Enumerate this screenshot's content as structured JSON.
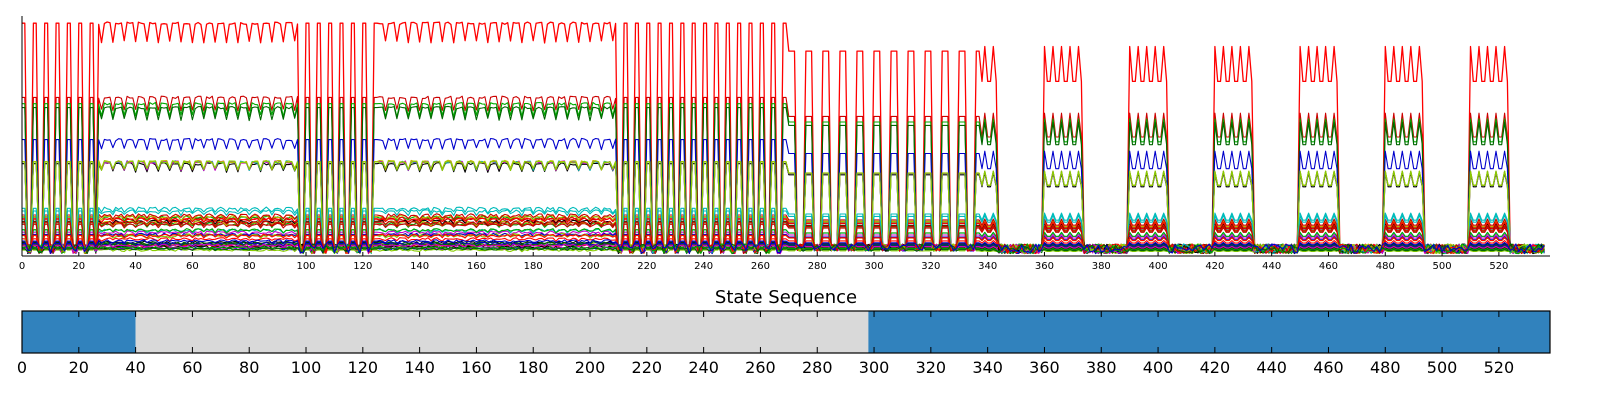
{
  "chart_data": [
    {
      "type": "line",
      "title": "",
      "xlabel": "",
      "ylabel": "",
      "xlim": [
        0,
        538
      ],
      "xticks": [
        0,
        20,
        40,
        60,
        80,
        100,
        120,
        140,
        160,
        180,
        200,
        220,
        240,
        260,
        280,
        300,
        320,
        340,
        360,
        380,
        400,
        420,
        440,
        460,
        480,
        500,
        520
      ],
      "y_ticks_shown": false,
      "grid": false,
      "series_count": 45,
      "segments": [
        {
          "x_range": [
            0,
            27
          ],
          "pattern": "dense spikes"
        },
        {
          "x_range": [
            27,
            98
          ],
          "pattern": "steady oscillating bands"
        },
        {
          "x_range": [
            98,
            126
          ],
          "pattern": "dense spikes"
        },
        {
          "x_range": [
            126,
            210
          ],
          "pattern": "steady oscillating bands"
        },
        {
          "x_range": [
            210,
            270
          ],
          "pattern": "dense spikes"
        },
        {
          "x_range": [
            270,
            338
          ],
          "pattern": "wide pulses"
        },
        {
          "x_range": [
            338,
            538
          ],
          "pattern": "burst pulses"
        }
      ],
      "series_colors": [
        "#ff0000",
        "#cc0000",
        "#00aa00",
        "#006600",
        "#0000cc",
        "#000000",
        "#00bbbb",
        "#cc00cc",
        "#bbbb00",
        "#88cc00"
      ]
    },
    {
      "type": "bar",
      "title": "State Sequence",
      "xlim": [
        0,
        538
      ],
      "xticks": [
        0,
        20,
        40,
        60,
        80,
        100,
        120,
        140,
        160,
        180,
        200,
        220,
        240,
        260,
        280,
        300,
        320,
        340,
        360,
        380,
        400,
        420,
        440,
        460,
        480,
        500,
        520
      ],
      "states": [
        {
          "start": 0,
          "end": 40,
          "state": 1
        },
        {
          "start": 40,
          "end": 298,
          "state": 0
        },
        {
          "start": 298,
          "end": 538,
          "state": 1
        }
      ],
      "state_colors": {
        "0": "#d9d9d9",
        "1": "#3182bd"
      }
    }
  ]
}
